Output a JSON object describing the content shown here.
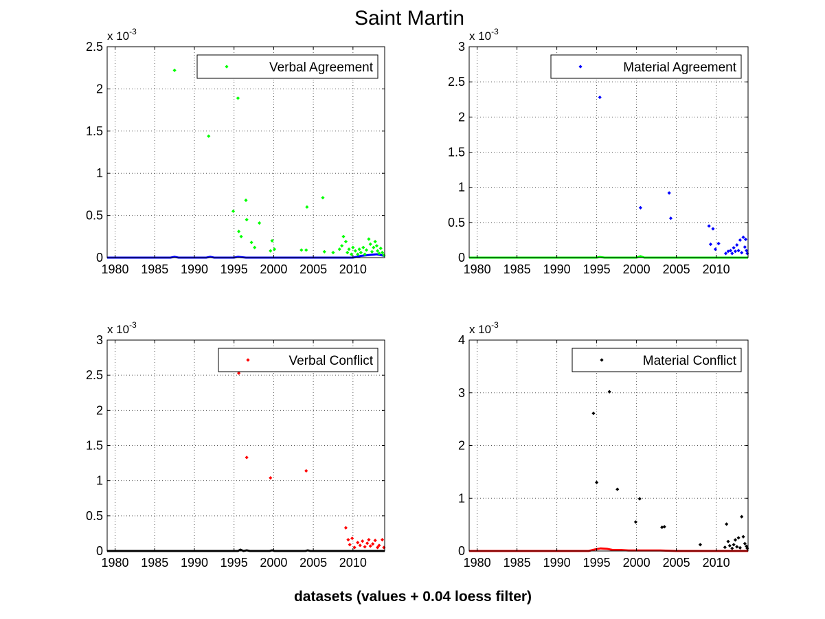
{
  "figure": {
    "title": "Saint Martin",
    "xlabel": "datasets (values + 0.04 loess filter)"
  },
  "chart_data": [
    {
      "type": "scatter",
      "legend": "Verbal Agreement",
      "legend_position": "top-right",
      "marker_color": "#00ff00",
      "baseline_color": "#0000ff",
      "grid": true,
      "exponent_label": "x 10",
      "exponent_power": "-3",
      "xlim": [
        1979,
        2014
      ],
      "ylim": [
        0,
        2.5
      ],
      "xticks": [
        1980,
        1985,
        1990,
        1995,
        2000,
        2005,
        2010
      ],
      "yticks": [
        0,
        0.5,
        1,
        1.5,
        2,
        2.5
      ],
      "ytick_labels": [
        "0",
        "0.5",
        "1",
        "1.5",
        "2",
        "2.5"
      ],
      "points": [
        [
          1987.5,
          2.22
        ],
        [
          1991.8,
          1.44
        ],
        [
          1995.5,
          1.89
        ],
        [
          1994.9,
          0.55
        ],
        [
          1995.6,
          0.31
        ],
        [
          1995.9,
          0.25
        ],
        [
          1996.5,
          0.68
        ],
        [
          1996.6,
          0.45
        ],
        [
          1997.2,
          0.18
        ],
        [
          1997.6,
          0.12
        ],
        [
          1998.2,
          0.41
        ],
        [
          1999.8,
          0.2
        ],
        [
          2000.1,
          0.1
        ],
        [
          1999.6,
          0.08
        ],
        [
          2003.5,
          0.09
        ],
        [
          2004.1,
          0.09
        ],
        [
          2004.2,
          0.6
        ],
        [
          2006.2,
          0.71
        ],
        [
          2006.4,
          0.07
        ],
        [
          2007.5,
          0.06
        ],
        [
          2008.3,
          0.1
        ],
        [
          2008.6,
          0.14
        ],
        [
          2008.8,
          0.25
        ],
        [
          2009.1,
          0.19
        ],
        [
          2009.3,
          0.06
        ],
        [
          2009.5,
          0.1
        ],
        [
          2009.8,
          0.04
        ],
        [
          2010.0,
          0.12
        ],
        [
          2010.3,
          0.08
        ],
        [
          2010.6,
          0.04
        ],
        [
          2010.8,
          0.1
        ],
        [
          2011.0,
          0.06
        ],
        [
          2011.3,
          0.12
        ],
        [
          2011.5,
          0.04
        ],
        [
          2011.7,
          0.09
        ],
        [
          2012.0,
          0.22
        ],
        [
          2012.2,
          0.16
        ],
        [
          2012.4,
          0.07
        ],
        [
          2012.6,
          0.12
        ],
        [
          2012.8,
          0.19
        ],
        [
          2013.0,
          0.14
        ],
        [
          2013.1,
          0.08
        ],
        [
          2013.3,
          0.05
        ],
        [
          2013.5,
          0.11
        ],
        [
          2013.7,
          0.06
        ],
        [
          2013.9,
          0.03
        ]
      ],
      "baseline": [
        [
          1979,
          0
        ],
        [
          1987,
          0
        ],
        [
          1987.5,
          0.01
        ],
        [
          1988,
          0
        ],
        [
          1991.5,
          0
        ],
        [
          1992,
          0.01
        ],
        [
          1992.5,
          0
        ],
        [
          1995,
          0
        ],
        [
          1995.5,
          0.01
        ],
        [
          1996.5,
          0
        ],
        [
          2010,
          0
        ],
        [
          2011,
          0.02
        ],
        [
          2012,
          0.03
        ],
        [
          2013,
          0.04
        ],
        [
          2014,
          0.02
        ]
      ]
    },
    {
      "type": "scatter",
      "legend": "Material Agreement",
      "legend_position": "top-right",
      "marker_color": "#0000ff",
      "baseline_color": "#00ff00",
      "grid": true,
      "exponent_label": "x 10",
      "exponent_power": "-3",
      "xlim": [
        1979,
        2014
      ],
      "ylim": [
        0,
        3
      ],
      "xticks": [
        1980,
        1985,
        1990,
        1995,
        2000,
        2005,
        2010
      ],
      "yticks": [
        0,
        0.5,
        1,
        1.5,
        2,
        2.5,
        3
      ],
      "ytick_labels": [
        "0",
        "0.5",
        "1",
        "1.5",
        "2",
        "2.5",
        "3"
      ],
      "points": [
        [
          1995.4,
          2.28
        ],
        [
          2000.5,
          0.71
        ],
        [
          2004.1,
          0.92
        ],
        [
          2004.3,
          0.56
        ],
        [
          2009.1,
          0.45
        ],
        [
          2009.3,
          0.19
        ],
        [
          2009.6,
          0.41
        ],
        [
          2009.9,
          0.12
        ],
        [
          2010.3,
          0.2
        ],
        [
          2011.2,
          0.06
        ],
        [
          2011.5,
          0.09
        ],
        [
          2011.8,
          0.1
        ],
        [
          2012.0,
          0.06
        ],
        [
          2012.2,
          0.14
        ],
        [
          2012.4,
          0.09
        ],
        [
          2012.6,
          0.18
        ],
        [
          2012.8,
          0.1
        ],
        [
          2013.0,
          0.25
        ],
        [
          2013.2,
          0.07
        ],
        [
          2013.4,
          0.29
        ],
        [
          2013.6,
          0.15
        ],
        [
          2013.7,
          0.26
        ],
        [
          2013.8,
          0.1
        ],
        [
          2013.9,
          0.06
        ]
      ],
      "baseline": [
        [
          1979,
          0
        ],
        [
          1995,
          0
        ],
        [
          1995.4,
          0.01
        ],
        [
          1996,
          0
        ],
        [
          2000,
          0
        ],
        [
          2000.5,
          0.02
        ],
        [
          2001,
          0
        ],
        [
          2014,
          0
        ]
      ]
    },
    {
      "type": "scatter",
      "legend": "Verbal Conflict",
      "legend_position": "top-right",
      "marker_color": "#ff0000",
      "baseline_color": "#000000",
      "grid": true,
      "exponent_label": "x 10",
      "exponent_power": "-3",
      "xlim": [
        1979,
        2014
      ],
      "ylim": [
        0,
        3
      ],
      "xticks": [
        1980,
        1985,
        1990,
        1995,
        2000,
        2005,
        2010
      ],
      "yticks": [
        0,
        0.5,
        1,
        1.5,
        2,
        2.5,
        3
      ],
      "ytick_labels": [
        "0",
        "0.5",
        "1",
        "1.5",
        "2",
        "2.5",
        "3"
      ],
      "points": [
        [
          1995.6,
          2.53
        ],
        [
          1996.6,
          1.33
        ],
        [
          1999.6,
          1.04
        ],
        [
          2004.1,
          1.14
        ],
        [
          2009.1,
          0.33
        ],
        [
          2009.4,
          0.16
        ],
        [
          2009.6,
          0.09
        ],
        [
          2009.9,
          0.18
        ],
        [
          2010.2,
          0.05
        ],
        [
          2010.6,
          0.12
        ],
        [
          2010.9,
          0.08
        ],
        [
          2011.2,
          0.14
        ],
        [
          2011.5,
          0.06
        ],
        [
          2011.8,
          0.11
        ],
        [
          2012.0,
          0.16
        ],
        [
          2012.2,
          0.07
        ],
        [
          2012.5,
          0.1
        ],
        [
          2012.8,
          0.15
        ],
        [
          2013.1,
          0.05
        ],
        [
          2013.3,
          0.08
        ],
        [
          2013.7,
          0.16
        ],
        [
          2013.9,
          0.05
        ]
      ],
      "baseline": [
        [
          1979,
          0
        ],
        [
          1995.5,
          0
        ],
        [
          1995.8,
          0.02
        ],
        [
          1996.2,
          0
        ],
        [
          1996.6,
          0.01
        ],
        [
          1997,
          0
        ],
        [
          1999.5,
          0
        ],
        [
          1999.8,
          0.01
        ],
        [
          2000.1,
          0
        ],
        [
          2004,
          0
        ],
        [
          2004.3,
          0.01
        ],
        [
          2004.6,
          0
        ],
        [
          2014,
          0
        ]
      ]
    },
    {
      "type": "scatter",
      "legend": "Material Conflict",
      "legend_position": "top-right",
      "marker_color": "#000000",
      "baseline_color": "#ff0000",
      "grid": true,
      "exponent_label": "x 10",
      "exponent_power": "-3",
      "xlim": [
        1979,
        2014
      ],
      "ylim": [
        0,
        4
      ],
      "xticks": [
        1980,
        1985,
        1990,
        1995,
        2000,
        2005,
        2010
      ],
      "yticks": [
        0,
        1,
        2,
        3,
        4
      ],
      "ytick_labels": [
        "0",
        "1",
        "2",
        "3",
        "4"
      ],
      "points": [
        [
          1994.6,
          2.61
        ],
        [
          1995.0,
          1.3
        ],
        [
          1996.6,
          3.02
        ],
        [
          1997.6,
          1.17
        ],
        [
          1999.9,
          0.55
        ],
        [
          2000.4,
          0.99
        ],
        [
          2003.2,
          0.45
        ],
        [
          2003.5,
          0.46
        ],
        [
          2008.0,
          0.12
        ],
        [
          2011.1,
          0.07
        ],
        [
          2011.3,
          0.51
        ],
        [
          2011.5,
          0.18
        ],
        [
          2011.7,
          0.1
        ],
        [
          2012.0,
          0.05
        ],
        [
          2012.2,
          0.12
        ],
        [
          2012.4,
          0.21
        ],
        [
          2012.6,
          0.08
        ],
        [
          2012.8,
          0.25
        ],
        [
          2013.0,
          0.06
        ],
        [
          2013.2,
          0.65
        ],
        [
          2013.4,
          0.27
        ],
        [
          2013.6,
          0.14
        ],
        [
          2013.8,
          0.09
        ],
        [
          2013.9,
          0.05
        ]
      ],
      "baseline": [
        [
          1979,
          0
        ],
        [
          1994,
          0
        ],
        [
          1994.8,
          0.03
        ],
        [
          1995.5,
          0.05
        ],
        [
          1996.3,
          0.04
        ],
        [
          1997,
          0.02
        ],
        [
          1998,
          0.02
        ],
        [
          1999,
          0.01
        ],
        [
          2003,
          0.01
        ],
        [
          2005,
          0
        ],
        [
          2014,
          0
        ]
      ]
    }
  ]
}
